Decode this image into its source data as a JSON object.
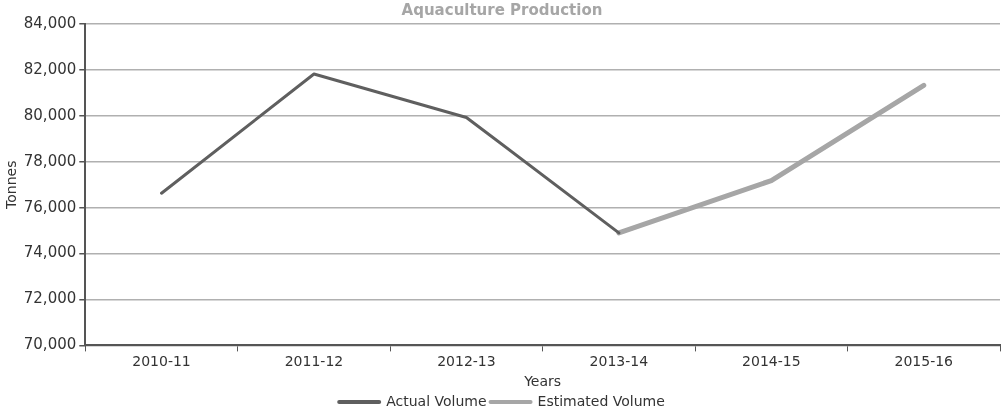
{
  "chart_data": {
    "type": "line",
    "title": "Aquaculture Production",
    "xlabel": "Years",
    "ylabel": "Tonnes",
    "categories": [
      "2010-11",
      "2011-12",
      "2012-13",
      "2013-14",
      "2014-15",
      "2015-16"
    ],
    "series": [
      {
        "name": "Actual Volume",
        "color": "#5f5f5f",
        "values": [
          76630,
          81820,
          79930,
          74900,
          null,
          null
        ]
      },
      {
        "name": "Estimated Volume",
        "color": "#a6a6a6",
        "values": [
          null,
          null,
          null,
          74900,
          77180,
          81330
        ]
      }
    ],
    "ylim": [
      70000,
      84000
    ],
    "yticks": [
      {
        "value": 70000,
        "label": "70,000"
      },
      {
        "value": 72000,
        "label": "72,000"
      },
      {
        "value": 74000,
        "label": "74,000"
      },
      {
        "value": 76000,
        "label": "76,000"
      },
      {
        "value": 78000,
        "label": "78,000"
      },
      {
        "value": 80000,
        "label": "80,000"
      },
      {
        "value": 82000,
        "label": "82,000"
      },
      {
        "value": 84000,
        "label": "84,000"
      }
    ],
    "grid": "y",
    "legend": "bottom",
    "marker": "none",
    "line_style": "solid"
  }
}
